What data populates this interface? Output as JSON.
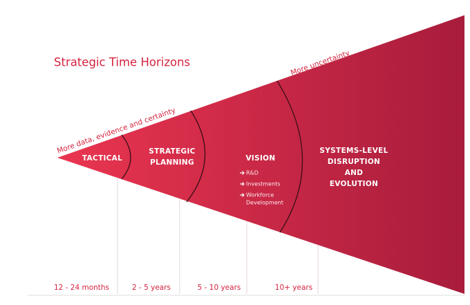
{
  "title": "Strategic Time Horizons",
  "annotations": {
    "left": "More data, evidence and certainty",
    "right": "More uncertainty"
  },
  "stages": [
    {
      "lines": [
        "TACTICAL"
      ]
    },
    {
      "lines": [
        "STRATEGIC",
        "PLANNING"
      ]
    },
    {
      "lines": [
        "VISION"
      ],
      "bullets": [
        "R&D",
        "Investments",
        [
          "Workforce",
          "Development"
        ]
      ]
    },
    {
      "lines": [
        "SYSTEMS-LEVEL",
        "DISRUPTION",
        "AND",
        "EVOLUTION"
      ]
    }
  ],
  "timeframes": [
    "12 - 24 months",
    "2 - 5 years",
    "5 - 10 years",
    "10+ years"
  ]
}
